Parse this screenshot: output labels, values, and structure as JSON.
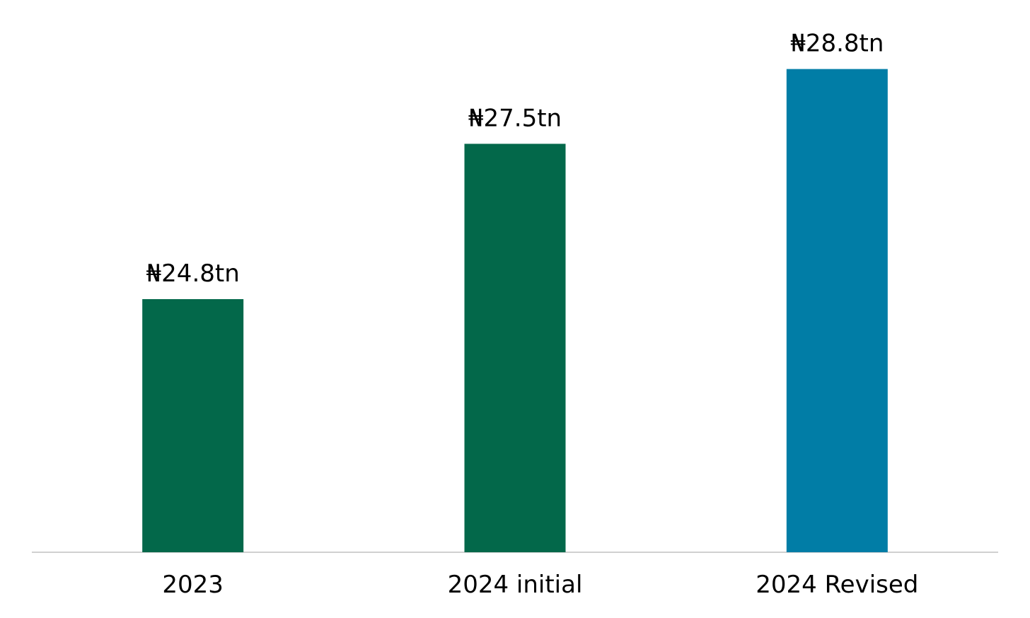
{
  "chart_data": {
    "type": "bar",
    "categories": [
      "2023",
      "2024 initial",
      "2024 Revised"
    ],
    "values": [
      24.8,
      27.5,
      28.8
    ],
    "data_labels": [
      "₦24.8tn",
      "₦27.5tn",
      "₦28.8tn"
    ],
    "colors": [
      "#03684A",
      "#03684A",
      "#017DA6"
    ],
    "axis_color": "#D0D0D0",
    "title": "",
    "xlabel": "",
    "ylabel": "",
    "ylim": [
      20.4,
      30
    ],
    "grid": false,
    "legend": "none"
  }
}
